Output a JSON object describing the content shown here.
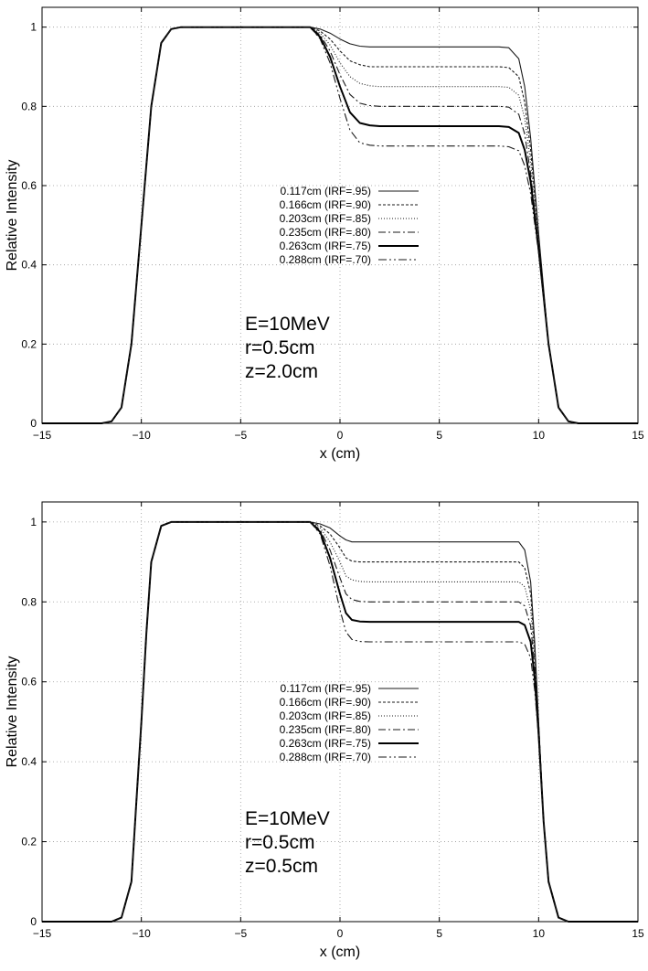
{
  "figure": {
    "panels": [
      {
        "annotation": [
          "E=10MeV",
          "r=0.5cm",
          "z=2.0cm"
        ]
      },
      {
        "annotation": [
          "E=10MeV",
          "r=0.5cm",
          "z=0.5cm"
        ]
      }
    ]
  },
  "chart_data": [
    {
      "type": "line",
      "title": "",
      "xlabel": "x (cm)",
      "ylabel": "Relative Intensity",
      "xlim": [
        -15,
        15
      ],
      "ylim": [
        0,
        1.05
      ],
      "xticks": [
        -15,
        -10,
        -5,
        0,
        5,
        10,
        15
      ],
      "yticks": [
        0,
        0.2,
        0.4,
        0.6,
        0.8,
        1
      ],
      "grid": true,
      "legend_position": "center",
      "x": [
        -15,
        -12,
        -11.5,
        -11,
        -10.5,
        -10,
        -9.5,
        -9,
        -8.5,
        -8,
        -5,
        -2,
        -1.5,
        -1,
        -0.5,
        0,
        0.5,
        1,
        1.5,
        2,
        3,
        5,
        8,
        8.5,
        9,
        9.3,
        9.6,
        10,
        10.5,
        11,
        11.5,
        12,
        15
      ],
      "series": [
        {
          "name": "0.117cm (IRF=.95)",
          "values": [
            0,
            0,
            0.005,
            0.04,
            0.2,
            0.5,
            0.8,
            0.96,
            0.995,
            1,
            1,
            1,
            1,
            0.995,
            0.985,
            0.97,
            0.958,
            0.952,
            0.95,
            0.95,
            0.95,
            0.95,
            0.95,
            0.948,
            0.92,
            0.85,
            0.72,
            0.48,
            0.2,
            0.04,
            0.005,
            0,
            0
          ],
          "style": "solid"
        },
        {
          "name": "0.166cm (IRF=.90)",
          "values": [
            0,
            0,
            0.005,
            0.04,
            0.2,
            0.5,
            0.8,
            0.96,
            0.995,
            1,
            1,
            1,
            1,
            0.99,
            0.97,
            0.94,
            0.915,
            0.905,
            0.9,
            0.9,
            0.9,
            0.9,
            0.9,
            0.898,
            0.875,
            0.81,
            0.69,
            0.47,
            0.2,
            0.04,
            0.005,
            0,
            0
          ],
          "style": "dashed"
        },
        {
          "name": "0.203cm (IRF=.85)",
          "values": [
            0,
            0,
            0.005,
            0.04,
            0.2,
            0.5,
            0.8,
            0.96,
            0.995,
            1,
            1,
            1,
            1,
            0.985,
            0.955,
            0.91,
            0.875,
            0.858,
            0.852,
            0.85,
            0.85,
            0.85,
            0.85,
            0.848,
            0.828,
            0.77,
            0.66,
            0.46,
            0.2,
            0.04,
            0.005,
            0,
            0
          ],
          "style": "dotted"
        },
        {
          "name": "0.235cm (IRF=.80)",
          "values": [
            0,
            0,
            0.005,
            0.04,
            0.2,
            0.5,
            0.8,
            0.96,
            0.995,
            1,
            1,
            1,
            1,
            0.98,
            0.94,
            0.88,
            0.83,
            0.808,
            0.802,
            0.8,
            0.8,
            0.8,
            0.8,
            0.798,
            0.78,
            0.73,
            0.63,
            0.45,
            0.2,
            0.04,
            0.005,
            0,
            0
          ],
          "style": "dashdot"
        },
        {
          "name": "0.263cm (IRF=.75)",
          "values": [
            0,
            0,
            0.005,
            0.04,
            0.2,
            0.5,
            0.8,
            0.96,
            0.995,
            1,
            1,
            1,
            1,
            0.975,
            0.925,
            0.85,
            0.785,
            0.758,
            0.752,
            0.75,
            0.75,
            0.75,
            0.75,
            0.748,
            0.733,
            0.69,
            0.61,
            0.44,
            0.2,
            0.04,
            0.005,
            0,
            0
          ],
          "style": "solid-bold"
        },
        {
          "name": "0.288cm (IRF=.70)",
          "values": [
            0,
            0,
            0.005,
            0.04,
            0.2,
            0.5,
            0.8,
            0.96,
            0.995,
            1,
            1,
            1,
            1,
            0.97,
            0.91,
            0.82,
            0.74,
            0.708,
            0.702,
            0.7,
            0.7,
            0.7,
            0.7,
            0.698,
            0.688,
            0.65,
            0.58,
            0.43,
            0.2,
            0.04,
            0.005,
            0,
            0
          ],
          "style": "dashdotdot"
        }
      ]
    },
    {
      "type": "line",
      "title": "",
      "xlabel": "x (cm)",
      "ylabel": "Relative Intensity",
      "xlim": [
        -15,
        15
      ],
      "ylim": [
        0,
        1.05
      ],
      "xticks": [
        -15,
        -10,
        -5,
        0,
        5,
        10,
        15
      ],
      "yticks": [
        0,
        0.2,
        0.4,
        0.6,
        0.8,
        1
      ],
      "grid": true,
      "legend_position": "center",
      "x": [
        -15,
        -11.5,
        -11,
        -10.5,
        -10.25,
        -10,
        -9.75,
        -9.5,
        -9,
        -8.5,
        -5,
        -2,
        -1.5,
        -1,
        -0.5,
        0,
        0.3,
        0.6,
        1,
        1.5,
        3,
        5,
        9,
        9.3,
        9.6,
        9.8,
        10,
        10.25,
        10.5,
        11,
        11.5,
        15
      ],
      "series": [
        {
          "name": "0.117cm (IRF=.95)",
          "values": [
            0,
            0,
            0.01,
            0.1,
            0.3,
            0.5,
            0.72,
            0.9,
            0.99,
            1,
            1,
            1,
            1,
            0.995,
            0.985,
            0.965,
            0.955,
            0.95,
            0.95,
            0.95,
            0.95,
            0.95,
            0.95,
            0.93,
            0.85,
            0.7,
            0.5,
            0.25,
            0.1,
            0.01,
            0,
            0
          ],
          "style": "solid"
        },
        {
          "name": "0.166cm (IRF=.90)",
          "values": [
            0,
            0,
            0.01,
            0.1,
            0.3,
            0.5,
            0.72,
            0.9,
            0.99,
            1,
            1,
            1,
            1,
            0.99,
            0.97,
            0.935,
            0.91,
            0.902,
            0.9,
            0.9,
            0.9,
            0.9,
            0.9,
            0.885,
            0.82,
            0.68,
            0.5,
            0.25,
            0.1,
            0.01,
            0,
            0
          ],
          "style": "dashed"
        },
        {
          "name": "0.203cm (IRF=.85)",
          "values": [
            0,
            0,
            0.01,
            0.1,
            0.3,
            0.5,
            0.72,
            0.9,
            0.99,
            1,
            1,
            1,
            1,
            0.985,
            0.95,
            0.9,
            0.865,
            0.855,
            0.851,
            0.85,
            0.85,
            0.85,
            0.85,
            0.838,
            0.78,
            0.66,
            0.49,
            0.25,
            0.1,
            0.01,
            0,
            0
          ],
          "style": "dotted"
        },
        {
          "name": "0.235cm (IRF=.80)",
          "values": [
            0,
            0,
            0.01,
            0.1,
            0.3,
            0.5,
            0.72,
            0.9,
            0.99,
            1,
            1,
            1,
            1,
            0.98,
            0.93,
            0.86,
            0.82,
            0.806,
            0.801,
            0.8,
            0.8,
            0.8,
            0.8,
            0.79,
            0.74,
            0.64,
            0.48,
            0.25,
            0.1,
            0.01,
            0,
            0
          ],
          "style": "dashdot"
        },
        {
          "name": "0.263cm (IRF=.75)",
          "values": [
            0,
            0,
            0.01,
            0.1,
            0.3,
            0.5,
            0.72,
            0.9,
            0.99,
            1,
            1,
            1,
            1,
            0.975,
            0.91,
            0.82,
            0.772,
            0.755,
            0.751,
            0.75,
            0.75,
            0.75,
            0.75,
            0.742,
            0.7,
            0.61,
            0.47,
            0.25,
            0.1,
            0.01,
            0,
            0
          ],
          "style": "solid-bold"
        },
        {
          "name": "0.288cm (IRF=.70)",
          "values": [
            0,
            0,
            0.01,
            0.1,
            0.3,
            0.5,
            0.72,
            0.9,
            0.99,
            1,
            1,
            1,
            1,
            0.97,
            0.89,
            0.78,
            0.725,
            0.706,
            0.701,
            0.7,
            0.7,
            0.7,
            0.7,
            0.694,
            0.66,
            0.58,
            0.46,
            0.25,
            0.1,
            0.01,
            0,
            0
          ],
          "style": "dashdotdot"
        }
      ]
    }
  ]
}
